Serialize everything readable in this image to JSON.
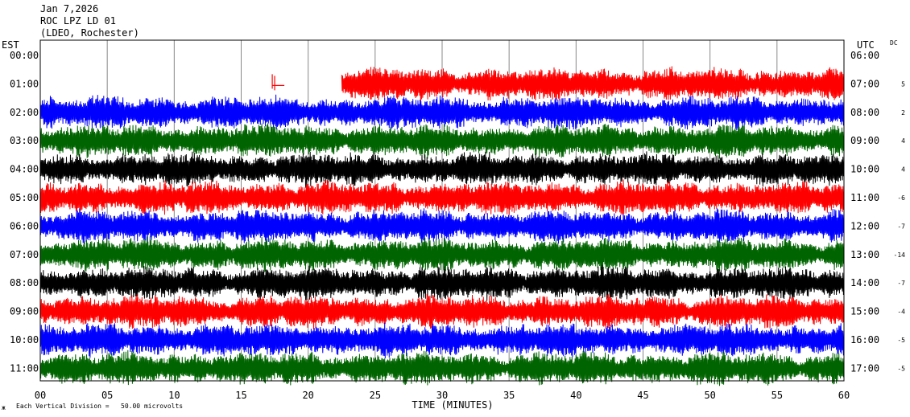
{
  "header": {
    "date": "Jan 7,2026",
    "station": "ROC LPZ LD 01",
    "network": "(LDEO, Rochester)"
  },
  "footer": {
    "scale_note": "Each Vertical Division =   50.00 microvolts",
    "corner_glyph": "ж"
  },
  "chart_data": {
    "type": "line",
    "title": "",
    "left_axis_title": "EST",
    "right_axis_title": "UTC",
    "dc_title": "DC",
    "xlabel": "TIME (MINUTES)",
    "xlim": [
      0,
      60
    ],
    "x_ticks": [
      "00",
      "05",
      "10",
      "15",
      "20",
      "25",
      "30",
      "35",
      "40",
      "45",
      "50",
      "55",
      "60"
    ],
    "rows": [
      {
        "est": "00:00",
        "utc": "06:00",
        "dc": "",
        "color": "#ff0000",
        "data": "none"
      },
      {
        "est": "01:00",
        "utc": "07:00",
        "dc": "5",
        "color": "#ff0000",
        "data": "partial",
        "start_min": 22.5,
        "glitch_min": 17.5
      },
      {
        "est": "02:00",
        "utc": "08:00",
        "dc": "2",
        "color": "#0000ff",
        "data": "full"
      },
      {
        "est": "03:00",
        "utc": "09:00",
        "dc": "4",
        "color": "#006400",
        "data": "full"
      },
      {
        "est": "04:00",
        "utc": "10:00",
        "dc": "4",
        "color": "#000000",
        "data": "full"
      },
      {
        "est": "05:00",
        "utc": "11:00",
        "dc": "-6",
        "color": "#ff0000",
        "data": "full"
      },
      {
        "est": "06:00",
        "utc": "12:00",
        "dc": "-7",
        "color": "#0000ff",
        "data": "full"
      },
      {
        "est": "07:00",
        "utc": "13:00",
        "dc": "-14",
        "color": "#006400",
        "data": "full"
      },
      {
        "est": "08:00",
        "utc": "14:00",
        "dc": "-7",
        "color": "#000000",
        "data": "full"
      },
      {
        "est": "09:00",
        "utc": "15:00",
        "dc": "-4",
        "color": "#ff0000",
        "data": "full"
      },
      {
        "est": "10:00",
        "utc": "16:00",
        "dc": "-5",
        "color": "#0000ff",
        "data": "full"
      },
      {
        "est": "11:00",
        "utc": "17:00",
        "dc": "-5",
        "color": "#006400",
        "data": "full"
      }
    ],
    "grid": true,
    "legend": "none"
  }
}
